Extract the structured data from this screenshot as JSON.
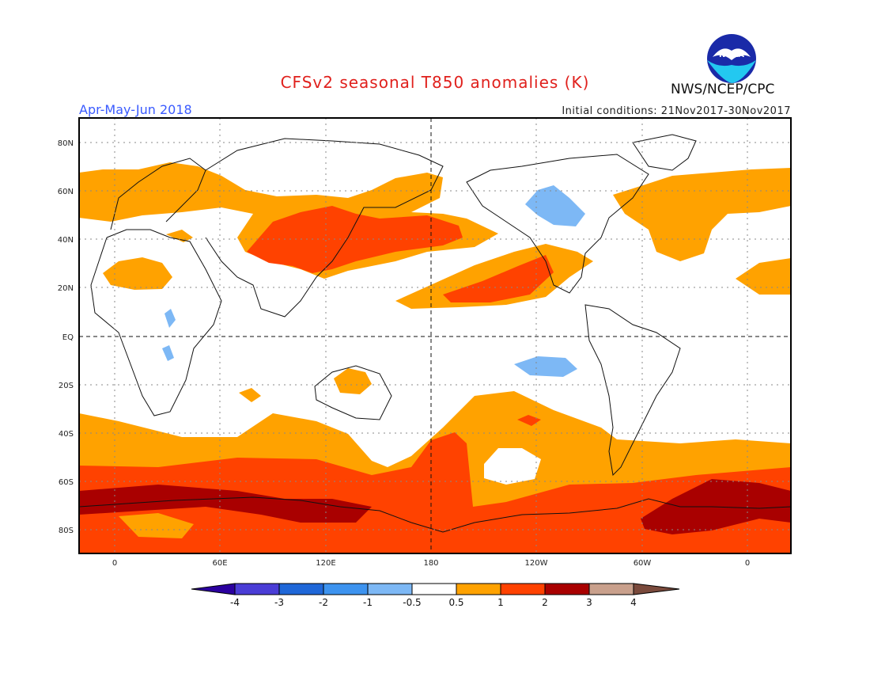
{
  "header": {
    "title": "CFSv2 seasonal T850 anomalies (K)",
    "season": "Apr-May-Jun 2018",
    "initial_conditions": "Initial conditions: 21Nov2017-30Nov2017",
    "agency": "NWS/NCEP/CPC",
    "logo_text": "NOAA"
  },
  "map": {
    "lat_labels": [
      "80N",
      "60N",
      "40N",
      "20N",
      "EQ",
      "20S",
      "40S",
      "60S",
      "80S"
    ],
    "lon_labels": [
      "0",
      "60E",
      "120E",
      "180",
      "120W",
      "60W",
      "0"
    ]
  },
  "legend": {
    "levels": [
      "-4",
      "-3",
      "-2",
      "-1",
      "-0.5",
      "0.5",
      "1",
      "2",
      "3",
      "4"
    ],
    "colors": [
      "#2b009f",
      "#4a3dd6",
      "#1f67d8",
      "#3d93ef",
      "#7db8f5",
      "#ffffff",
      "#ffa200",
      "#ff4200",
      "#a90000",
      "#c9a08c",
      "#7a4a3c"
    ]
  },
  "palette": {
    "warm1": "#ffa200",
    "warm2": "#ff4200",
    "warm3": "#a90000",
    "cool1": "#7db8f5"
  }
}
